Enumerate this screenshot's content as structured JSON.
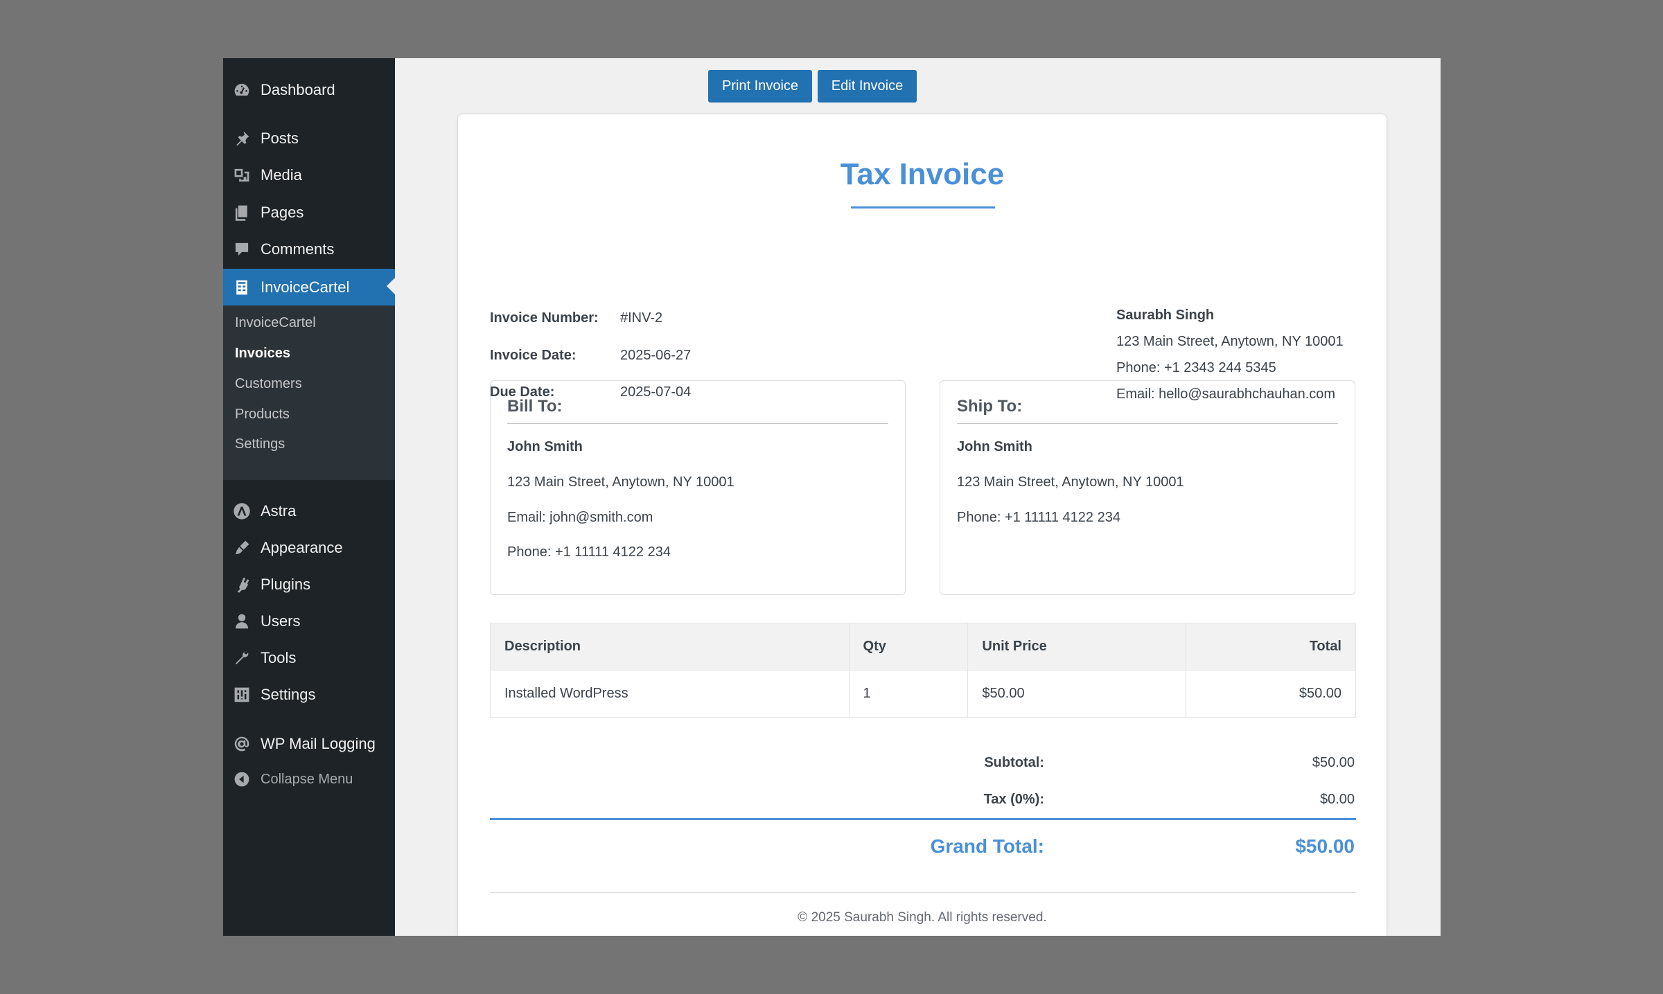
{
  "sidebar": {
    "menu": [
      {
        "label": "Dashboard",
        "icon": "dashboard-icon"
      },
      {
        "label": "Posts",
        "icon": "pin-icon"
      },
      {
        "label": "Media",
        "icon": "media-icon"
      },
      {
        "label": "Pages",
        "icon": "pages-icon"
      },
      {
        "label": "Comments",
        "icon": "comment-icon"
      },
      {
        "label": "InvoiceCartel",
        "icon": "invoice-icon"
      },
      {
        "label": "Astra",
        "icon": "astra-icon"
      },
      {
        "label": "Appearance",
        "icon": "brush-icon"
      },
      {
        "label": "Plugins",
        "icon": "plugin-icon"
      },
      {
        "label": "Users",
        "icon": "user-icon"
      },
      {
        "label": "Tools",
        "icon": "wrench-icon"
      },
      {
        "label": "Settings",
        "icon": "settings-icon"
      },
      {
        "label": "WP Mail Logging",
        "icon": "at-icon"
      },
      {
        "label": "Collapse Menu",
        "icon": "collapse-icon"
      }
    ],
    "submenu": [
      "InvoiceCartel",
      "Invoices",
      "Customers",
      "Products",
      "Settings"
    ],
    "active_color": "#2271b1"
  },
  "toolbar": {
    "print_label": "Print Invoice",
    "edit_label": "Edit Invoice"
  },
  "invoice": {
    "title": "Tax Invoice",
    "meta": [
      {
        "label": "Invoice Number:",
        "value": "#INV-2"
      },
      {
        "label": "Invoice Date:",
        "value": "2025-06-27"
      },
      {
        "label": "Due Date:",
        "value": "2025-07-04"
      }
    ],
    "from": {
      "name": "Saurabh Singh",
      "address": "123 Main Street, Anytown, NY 10001",
      "phone": "Phone: +1 2343 244 5345",
      "email": "Email: hello@saurabhchauhan.com"
    },
    "bill_to": {
      "title": "Bill To:",
      "name": "John Smith",
      "address": "123 Main Street, Anytown, NY 10001",
      "email": "Email: john@smith.com",
      "phone": "Phone: +1 11111 4122 234"
    },
    "ship_to": {
      "title": "Ship To:",
      "name": "John Smith",
      "address": "123 Main Street, Anytown, NY 10001",
      "phone": "Phone: +1 11111 4122 234"
    },
    "table": {
      "headers": [
        "Description",
        "Qty",
        "Unit Price",
        "Total"
      ],
      "rows": [
        [
          "Installed WordPress",
          "1",
          "$50.00",
          "$50.00"
        ]
      ]
    },
    "summary": {
      "subtotal_label": "Subtotal:",
      "subtotal_value": "$50.00",
      "tax_label": "Tax (0%):",
      "tax_value": "$0.00",
      "grand_label": "Grand Total:",
      "grand_value": "$50.00"
    },
    "footer": "© 2025 Saurabh Singh. All rights reserved.",
    "accent_color": "#4a90d9"
  }
}
